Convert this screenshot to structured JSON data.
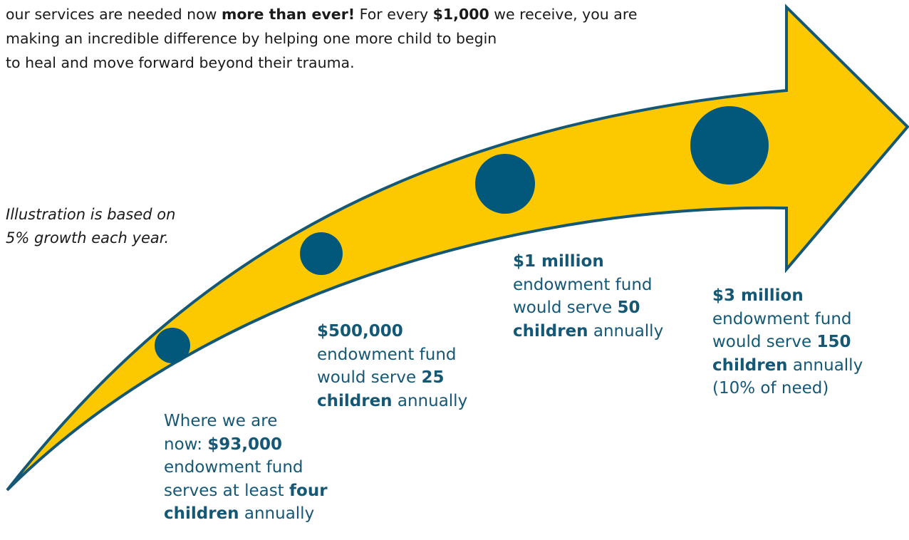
{
  "intro": {
    "line1": {
      "t1": "our services are needed now ",
      "b1": "more than ever!",
      "t2": "  For every ",
      "b2": "$1,000",
      "t3": " we receive, you are"
    },
    "line2": "making an incredible difference by helping one more child to begin",
    "line3": "to heal and move forward beyond their trauma."
  },
  "note": {
    "line1": "Illustration is based on",
    "line2": "5% growth each year."
  },
  "milestones": [
    {
      "l1": "Where we are",
      "l2": {
        "t": "now: ",
        "b": "$93,000"
      },
      "l3": "endowment fund",
      "l4": {
        "t": "serves at least ",
        "b": "four"
      },
      "l5": {
        "b": "children",
        "t": " annually"
      }
    },
    {
      "l1": "$500,000",
      "l2": "endowment fund",
      "l3": {
        "t": "would serve ",
        "b": "25"
      },
      "l4": {
        "b": "children",
        "t": " annually"
      }
    },
    {
      "l1": "$1 million",
      "l2": "endowment fund",
      "l3": {
        "t": "would serve ",
        "b": "50"
      },
      "l4": {
        "b": "children",
        "t": " annually"
      }
    },
    {
      "l1": "$3 million",
      "l2": "endowment fund",
      "l3": {
        "t": "would serve ",
        "b": "150"
      },
      "l4": {
        "b": "children",
        "t": " annually"
      },
      "l5": "(10% of need)"
    }
  ],
  "colors": {
    "arrow_fill": "#fcc800",
    "arrow_stroke": "#155876",
    "dot": "#02587a",
    "text_accent": "#155876"
  }
}
